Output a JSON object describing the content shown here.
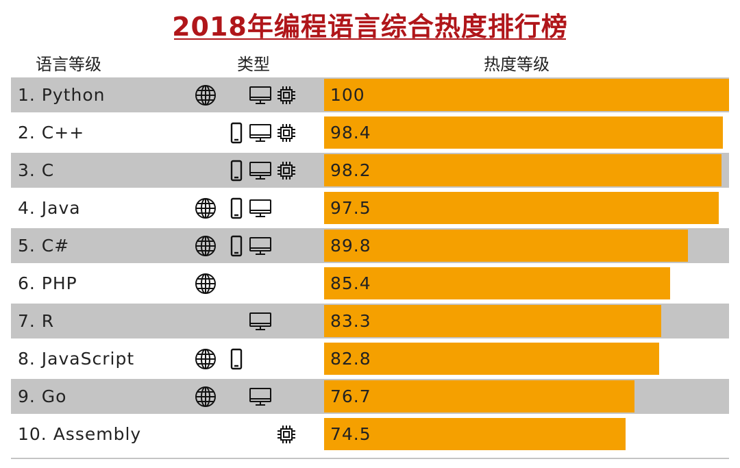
{
  "chart_data": {
    "type": "bar",
    "title": "2018年编程语言综合热度排行榜",
    "columns": {
      "rank": "语言等级",
      "type": "类型",
      "score": "热度等级"
    },
    "xlim": [
      0,
      100
    ],
    "bar_color": "#f5a000",
    "stripe_color": "#c4c4c4",
    "title_color": "#b0161a",
    "rows": [
      {
        "label": "1. Python",
        "value": 100,
        "value_label": "100",
        "icons": [
          "globe-icon",
          "desktop-icon",
          "chip-icon"
        ]
      },
      {
        "label": "2. C++",
        "value": 98.4,
        "value_label": "98.4",
        "icons": [
          "mobile-icon",
          "desktop-icon",
          "chip-icon"
        ]
      },
      {
        "label": "3. C",
        "value": 98.2,
        "value_label": "98.2",
        "icons": [
          "mobile-icon",
          "desktop-icon",
          "chip-icon"
        ]
      },
      {
        "label": "4. Java",
        "value": 97.5,
        "value_label": "97.5",
        "icons": [
          "globe-icon",
          "mobile-icon",
          "desktop-icon"
        ]
      },
      {
        "label": "5. C#",
        "value": 89.8,
        "value_label": "89.8",
        "icons": [
          "globe-icon",
          "mobile-icon",
          "desktop-icon"
        ]
      },
      {
        "label": "6. PHP",
        "value": 85.4,
        "value_label": "85.4",
        "icons": [
          "globe-icon"
        ]
      },
      {
        "label": "7. R",
        "value": 83.3,
        "value_label": "83.3",
        "icons": [
          "desktop-icon"
        ]
      },
      {
        "label": "8. JavaScript",
        "value": 82.8,
        "value_label": "82.8",
        "icons": [
          "globe-icon",
          "mobile-icon"
        ]
      },
      {
        "label": "9. Go",
        "value": 76.7,
        "value_label": "76.7",
        "icons": [
          "globe-icon",
          "desktop-icon"
        ]
      },
      {
        "label": "10. Assembly",
        "value": 74.5,
        "value_label": "74.5",
        "icons": [
          "chip-icon"
        ]
      }
    ]
  }
}
